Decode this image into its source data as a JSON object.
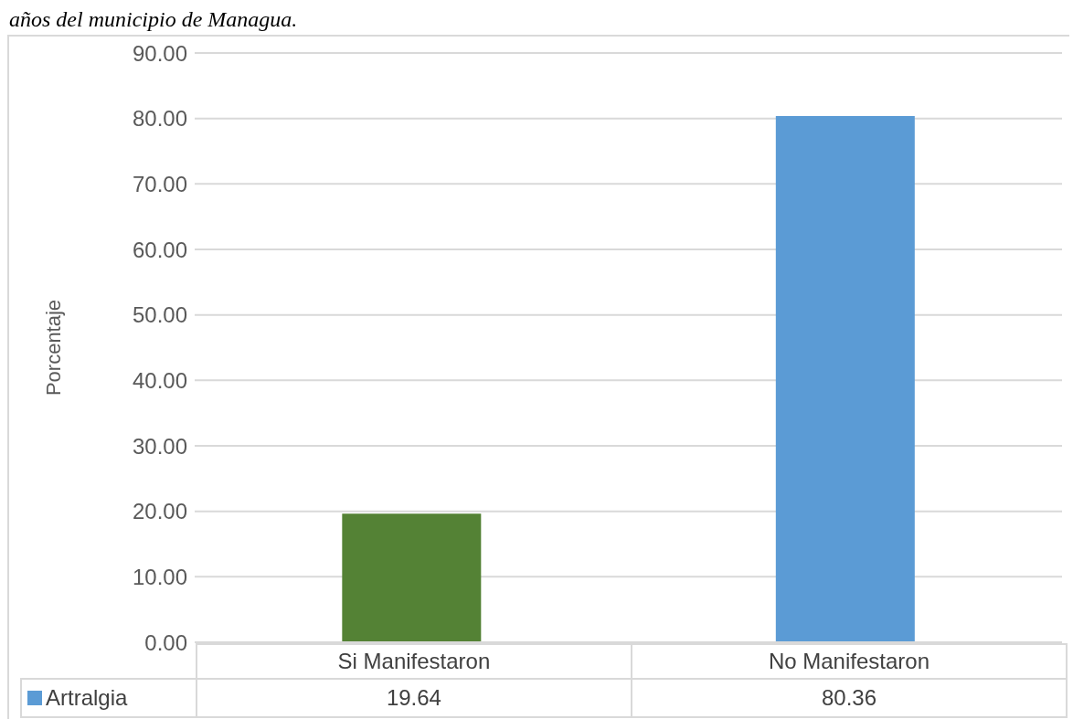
{
  "chart_data": {
    "type": "bar",
    "annotations": [
      "años del municipio de Managua."
    ],
    "ylabel": "Porcentaje",
    "categories": [
      "Si Manifestaron",
      "No Manifestaron"
    ],
    "series": [
      {
        "name": "Artralgia",
        "color": "#5b9bd5",
        "colors": [
          "#548235",
          "#5b9bd5"
        ],
        "values": [
          19.64,
          80.36
        ]
      }
    ],
    "ylim": [
      0,
      90
    ],
    "yticks": [
      {
        "value": 0,
        "label": "0.00"
      },
      {
        "value": 10,
        "label": "10.00"
      },
      {
        "value": 20,
        "label": "20.00"
      },
      {
        "value": 30,
        "label": "30.00"
      },
      {
        "value": 40,
        "label": "40.00"
      },
      {
        "value": 50,
        "label": "50.00"
      },
      {
        "value": 60,
        "label": "60.00"
      },
      {
        "value": 70,
        "label": "70.00"
      },
      {
        "value": 80,
        "label": "80.00"
      },
      {
        "value": 90,
        "label": "90.00"
      }
    ],
    "grid": "y",
    "legend": "bottom",
    "data_labels": true
  }
}
